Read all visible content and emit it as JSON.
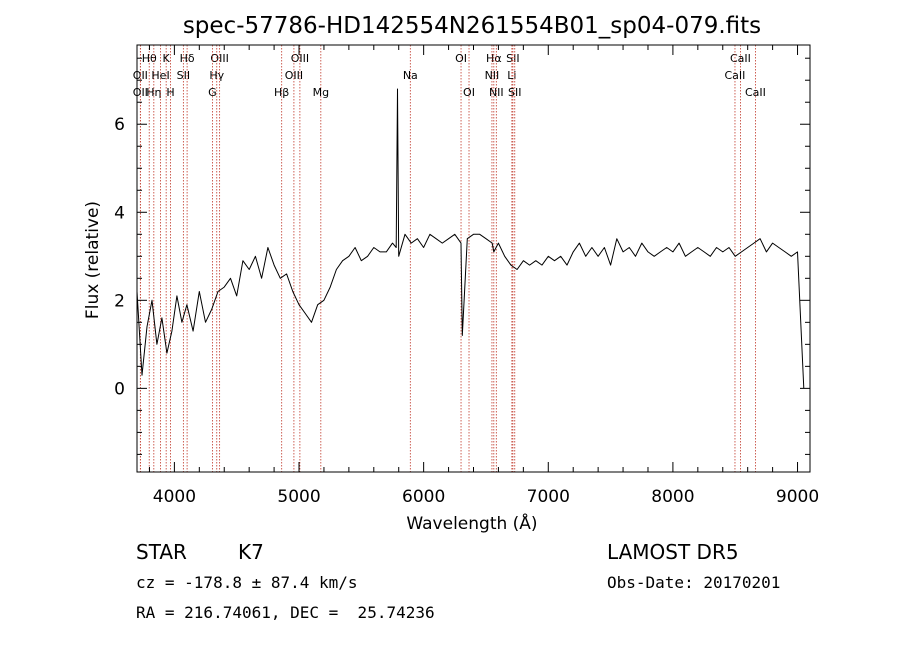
{
  "chart_data": {
    "type": "line",
    "title": "spec-57786-HD142554N261554B01_sp04-079.fits",
    "xlabel": "Wavelength (Å)",
    "ylabel": "Flux (relative)",
    "xlim": [
      3700,
      9100
    ],
    "ylim": [
      -1.9,
      7.8
    ],
    "x_ticks": [
      4000,
      5000,
      6000,
      7000,
      8000,
      9000
    ],
    "x_tick_labels": [
      "4000",
      "5000",
      "6000",
      "7000",
      "8000",
      "9000"
    ],
    "y_ticks": [
      0,
      2,
      4,
      6
    ],
    "y_tick_labels": [
      "0",
      "2",
      "4",
      "6"
    ],
    "grid": false,
    "series": [
      {
        "color": "#000000",
        "x": [
          3700,
          3740,
          3780,
          3820,
          3860,
          3900,
          3940,
          3980,
          4020,
          4060,
          4100,
          4150,
          4200,
          4250,
          4300,
          4350,
          4400,
          4450,
          4500,
          4550,
          4600,
          4650,
          4700,
          4750,
          4800,
          4850,
          4900,
          4950,
          5000,
          5050,
          5100,
          5150,
          5200,
          5250,
          5300,
          5350,
          5400,
          5450,
          5500,
          5550,
          5600,
          5650,
          5700,
          5750,
          5780,
          5790,
          5800,
          5850,
          5900,
          5950,
          6000,
          6050,
          6100,
          6150,
          6200,
          6250,
          6300,
          6310,
          6350,
          6400,
          6450,
          6500,
          6550,
          6563,
          6600,
          6650,
          6700,
          6750,
          6800,
          6850,
          6900,
          6950,
          7000,
          7050,
          7100,
          7150,
          7200,
          7250,
          7300,
          7350,
          7400,
          7450,
          7500,
          7550,
          7600,
          7650,
          7700,
          7750,
          7800,
          7850,
          7900,
          7950,
          8000,
          8050,
          8100,
          8150,
          8200,
          8250,
          8300,
          8350,
          8400,
          8450,
          8500,
          8550,
          8600,
          8650,
          8700,
          8750,
          8800,
          8850,
          8900,
          8950,
          9000,
          9050
        ],
        "y": [
          2.2,
          0.3,
          1.4,
          2.0,
          1.0,
          1.6,
          0.8,
          1.3,
          2.1,
          1.5,
          1.9,
          1.3,
          2.2,
          1.5,
          1.8,
          2.2,
          2.3,
          2.5,
          2.1,
          2.9,
          2.7,
          3.0,
          2.5,
          3.2,
          2.8,
          2.5,
          2.6,
          2.2,
          1.9,
          1.7,
          1.5,
          1.9,
          2.0,
          2.3,
          2.7,
          2.9,
          3.0,
          3.2,
          2.9,
          3.0,
          3.2,
          3.1,
          3.1,
          3.3,
          3.2,
          6.8,
          3.0,
          3.5,
          3.3,
          3.4,
          3.2,
          3.5,
          3.4,
          3.3,
          3.4,
          3.5,
          3.3,
          1.2,
          3.4,
          3.5,
          3.5,
          3.4,
          3.3,
          3.1,
          3.3,
          3.0,
          2.8,
          2.7,
          2.9,
          2.8,
          2.9,
          2.8,
          3.0,
          2.9,
          3.0,
          2.8,
          3.1,
          3.3,
          3.0,
          3.2,
          3.0,
          3.2,
          2.8,
          3.4,
          3.1,
          3.2,
          3.0,
          3.3,
          3.1,
          3.0,
          3.1,
          3.2,
          3.1,
          3.3,
          3.0,
          3.1,
          3.2,
          3.1,
          3.0,
          3.2,
          3.1,
          3.2,
          3.0,
          3.1,
          3.2,
          3.3,
          3.4,
          3.1,
          3.3,
          3.2,
          3.1,
          3.0,
          3.1,
          0.0
        ]
      }
    ],
    "line_markers": [
      {
        "label": "Hθ",
        "wavelength": 3798,
        "row": 1
      },
      {
        "label": "OII",
        "wavelength": 3727,
        "row": 2
      },
      {
        "label": "OII",
        "wavelength": 3727,
        "row": 3
      },
      {
        "label": "Hη",
        "wavelength": 3835,
        "row": 3
      },
      {
        "label": "K",
        "wavelength": 3934,
        "row": 1
      },
      {
        "label": "HeI",
        "wavelength": 3889,
        "row": 2
      },
      {
        "label": "H",
        "wavelength": 3969,
        "row": 3
      },
      {
        "label": "Hδ",
        "wavelength": 4102,
        "row": 1
      },
      {
        "label": "SII",
        "wavelength": 4072,
        "row": 2
      },
      {
        "label": "OIII",
        "wavelength": 4363,
        "row": 1
      },
      {
        "label": "Hγ",
        "wavelength": 4340,
        "row": 2
      },
      {
        "label": "G",
        "wavelength": 4305,
        "row": 3
      },
      {
        "label": "OIII",
        "wavelength": 5007,
        "row": 1
      },
      {
        "label": "OIII",
        "wavelength": 4959,
        "row": 2
      },
      {
        "label": "Hβ",
        "wavelength": 4861,
        "row": 3
      },
      {
        "label": "Mg",
        "wavelength": 5175,
        "row": 3
      },
      {
        "label": "Na",
        "wavelength": 5893,
        "row": 2
      },
      {
        "label": "OI",
        "wavelength": 6300,
        "row": 1
      },
      {
        "label": "OI",
        "wavelength": 6364,
        "row": 3
      },
      {
        "label": "Hα",
        "wavelength": 6563,
        "row": 1
      },
      {
        "label": "NII",
        "wavelength": 6548,
        "row": 2
      },
      {
        "label": "NII",
        "wavelength": 6583,
        "row": 3
      },
      {
        "label": "SII",
        "wavelength": 6716,
        "row": 1
      },
      {
        "label": "Li",
        "wavelength": 6708,
        "row": 2
      },
      {
        "label": "SII",
        "wavelength": 6731,
        "row": 3
      },
      {
        "label": "CaII",
        "wavelength": 8542,
        "row": 1
      },
      {
        "label": "CaII",
        "wavelength": 8498,
        "row": 2
      },
      {
        "label": "CaII",
        "wavelength": 8662,
        "row": 3
      }
    ]
  },
  "info": {
    "class": "STAR",
    "subclass": "K7",
    "survey": "LAMOST DR5",
    "redshift": "cz = -178.8 ± 87.4 km/s",
    "obs_date": "Obs-Date: 20170201",
    "coords": "RA = 216.74061, DEC =  25.74236"
  }
}
